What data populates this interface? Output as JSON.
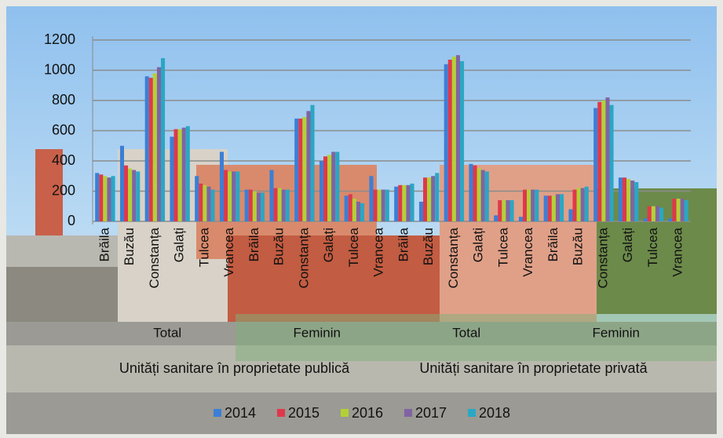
{
  "chart_data": {
    "type": "bar",
    "categories": [
      "Brăila",
      "Buzău",
      "Constanța",
      "Galați",
      "Tulcea",
      "Vrancea",
      "Brăila",
      "Buzău",
      "Constanța",
      "Galați",
      "Tulcea",
      "Vrancea",
      "Brăila",
      "Buzău",
      "Constanța",
      "Galați",
      "Tulcea",
      "Vrancea",
      "Brăila",
      "Buzău",
      "Constanța",
      "Galați",
      "Tulcea",
      "Vrancea"
    ],
    "category_groups": [
      "Total",
      "Feminin",
      "Total",
      "Feminin"
    ],
    "category_supergroups": [
      "Unități sanitare în proprietate publică",
      "Unități sanitare în proprietate privată"
    ],
    "series": [
      {
        "name": "2014",
        "color": "#3b7fd6",
        "values": [
          320,
          500,
          960,
          560,
          300,
          460,
          210,
          340,
          680,
          400,
          170,
          300,
          230,
          130,
          1040,
          380,
          40,
          30,
          170,
          80,
          750,
          290,
          20,
          20
        ]
      },
      {
        "name": "2015",
        "color": "#e0384b",
        "values": [
          310,
          370,
          950,
          610,
          250,
          340,
          210,
          220,
          680,
          430,
          180,
          210,
          240,
          290,
          1070,
          370,
          140,
          210,
          170,
          210,
          790,
          290,
          100,
          150
        ]
      },
      {
        "name": "2016",
        "color": "#b3d134",
        "values": [
          300,
          350,
          980,
          610,
          240,
          330,
          200,
          220,
          690,
          440,
          150,
          210,
          240,
          290,
          1090,
          350,
          140,
          210,
          170,
          220,
          800,
          280,
          100,
          150
        ]
      },
      {
        "name": "2017",
        "color": "#8064a2",
        "values": [
          290,
          340,
          1020,
          620,
          230,
          330,
          190,
          210,
          730,
          460,
          130,
          210,
          240,
          300,
          1100,
          340,
          140,
          210,
          180,
          220,
          820,
          270,
          100,
          150
        ]
      },
      {
        "name": "2018",
        "color": "#2aa7c4",
        "values": [
          300,
          330,
          1080,
          630,
          210,
          330,
          190,
          210,
          770,
          460,
          120,
          210,
          250,
          320,
          1060,
          330,
          140,
          210,
          180,
          230,
          770,
          260,
          90,
          140
        ]
      }
    ],
    "ylim": [
      0,
      1200
    ],
    "yticks": [
      0,
      200,
      400,
      600,
      800,
      1000,
      1200
    ],
    "grid": true
  }
}
